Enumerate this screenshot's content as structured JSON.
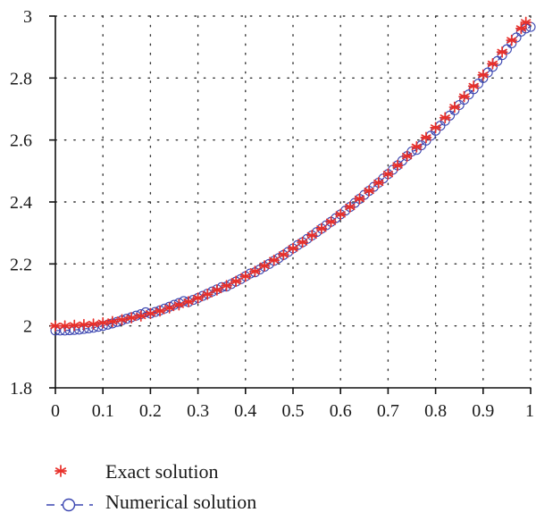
{
  "chart_data": {
    "type": "scatter",
    "title": "",
    "xlabel": "",
    "ylabel": "",
    "xlim": [
      0,
      1
    ],
    "ylim": [
      1.8,
      3
    ],
    "grid": true,
    "grid_style": "dotted",
    "legend_position": "bottom-left",
    "x_ticks": [
      0,
      0.1,
      0.2,
      0.3,
      0.4,
      0.5,
      0.6,
      0.7,
      0.8,
      0.9,
      1
    ],
    "x_tick_labels": [
      "0",
      "0.1",
      "0.2",
      "0.3",
      "0.4",
      "0.5",
      "0.6",
      "0.7",
      "0.8",
      "0.9",
      "1"
    ],
    "y_ticks": [
      1.8,
      2,
      2.2,
      2.4,
      2.6,
      2.8,
      3
    ],
    "y_tick_labels": [
      "1.8",
      "2",
      "2.2",
      "2.4",
      "2.6",
      "2.8",
      "3"
    ],
    "series": [
      {
        "name": "Exact solution",
        "marker": "star",
        "color": "#e8302a",
        "x": [
          0.0,
          0.02,
          0.04,
          0.06,
          0.08,
          0.1,
          0.12,
          0.14,
          0.16,
          0.18,
          0.2,
          0.22,
          0.24,
          0.26,
          0.28,
          0.3,
          0.32,
          0.34,
          0.36,
          0.38,
          0.4,
          0.42,
          0.44,
          0.46,
          0.48,
          0.5,
          0.52,
          0.54,
          0.56,
          0.58,
          0.6,
          0.62,
          0.64,
          0.66,
          0.68,
          0.7,
          0.72,
          0.74,
          0.76,
          0.78,
          0.8,
          0.82,
          0.84,
          0.86,
          0.88,
          0.9,
          0.92,
          0.94,
          0.96,
          0.98,
          0.99
        ],
        "y": [
          2.0,
          2.0,
          2.002,
          2.004,
          2.006,
          2.01,
          2.014,
          2.02,
          2.026,
          2.032,
          2.04,
          2.048,
          2.058,
          2.068,
          2.078,
          2.09,
          2.102,
          2.116,
          2.13,
          2.144,
          2.16,
          2.176,
          2.194,
          2.212,
          2.23,
          2.25,
          2.27,
          2.292,
          2.314,
          2.336,
          2.36,
          2.384,
          2.41,
          2.436,
          2.462,
          2.49,
          2.518,
          2.548,
          2.578,
          2.608,
          2.64,
          2.672,
          2.706,
          2.74,
          2.774,
          2.81,
          2.846,
          2.884,
          2.922,
          2.96,
          2.98
        ]
      },
      {
        "name": "Numerical solution",
        "marker": "circle",
        "color": "#3a45b0",
        "x": [
          0.0,
          0.01,
          0.02,
          0.03,
          0.04,
          0.05,
          0.06,
          0.07,
          0.08,
          0.09,
          0.1,
          0.11,
          0.12,
          0.13,
          0.14,
          0.15,
          0.16,
          0.17,
          0.18,
          0.19,
          0.2,
          0.21,
          0.22,
          0.23,
          0.24,
          0.25,
          0.26,
          0.27,
          0.28,
          0.29,
          0.3,
          0.31,
          0.32,
          0.33,
          0.34,
          0.35,
          0.36,
          0.37,
          0.38,
          0.39,
          0.4,
          0.41,
          0.42,
          0.43,
          0.44,
          0.45,
          0.46,
          0.47,
          0.48,
          0.49,
          0.5,
          0.51,
          0.52,
          0.53,
          0.54,
          0.55,
          0.56,
          0.57,
          0.58,
          0.59,
          0.6,
          0.61,
          0.62,
          0.63,
          0.64,
          0.65,
          0.66,
          0.67,
          0.68,
          0.69,
          0.7,
          0.71,
          0.72,
          0.73,
          0.74,
          0.75,
          0.76,
          0.77,
          0.78,
          0.79,
          0.8,
          0.81,
          0.82,
          0.83,
          0.84,
          0.85,
          0.86,
          0.87,
          0.88,
          0.89,
          0.9,
          0.91,
          0.92,
          0.93,
          0.94,
          0.95,
          0.96,
          0.97,
          0.98,
          0.99,
          1.0
        ],
        "y": [
          1.985,
          1.985,
          1.985,
          1.986,
          1.987,
          1.988,
          1.99,
          1.992,
          1.994,
          1.997,
          2.0,
          2.004,
          2.008,
          2.013,
          2.018,
          2.023,
          2.028,
          2.033,
          2.038,
          2.044,
          2.04,
          2.045,
          2.05,
          2.056,
          2.062,
          2.068,
          2.074,
          2.08,
          2.077,
          2.084,
          2.09,
          2.097,
          2.104,
          2.111,
          2.118,
          2.125,
          2.127,
          2.135,
          2.143,
          2.151,
          2.16,
          2.169,
          2.173,
          2.182,
          2.191,
          2.2,
          2.21,
          2.219,
          2.229,
          2.239,
          2.25,
          2.261,
          2.27,
          2.281,
          2.292,
          2.303,
          2.314,
          2.325,
          2.336,
          2.348,
          2.36,
          2.372,
          2.384,
          2.397,
          2.41,
          2.423,
          2.436,
          2.449,
          2.462,
          2.476,
          2.49,
          2.504,
          2.518,
          2.533,
          2.548,
          2.563,
          2.568,
          2.583,
          2.598,
          2.614,
          2.63,
          2.646,
          2.662,
          2.679,
          2.696,
          2.713,
          2.73,
          2.747,
          2.764,
          2.782,
          2.8,
          2.818,
          2.836,
          2.855,
          2.874,
          2.893,
          2.912,
          2.931,
          2.95,
          2.96,
          2.965
        ]
      }
    ],
    "legend": [
      "Exact solution",
      "Numerical solution"
    ]
  }
}
